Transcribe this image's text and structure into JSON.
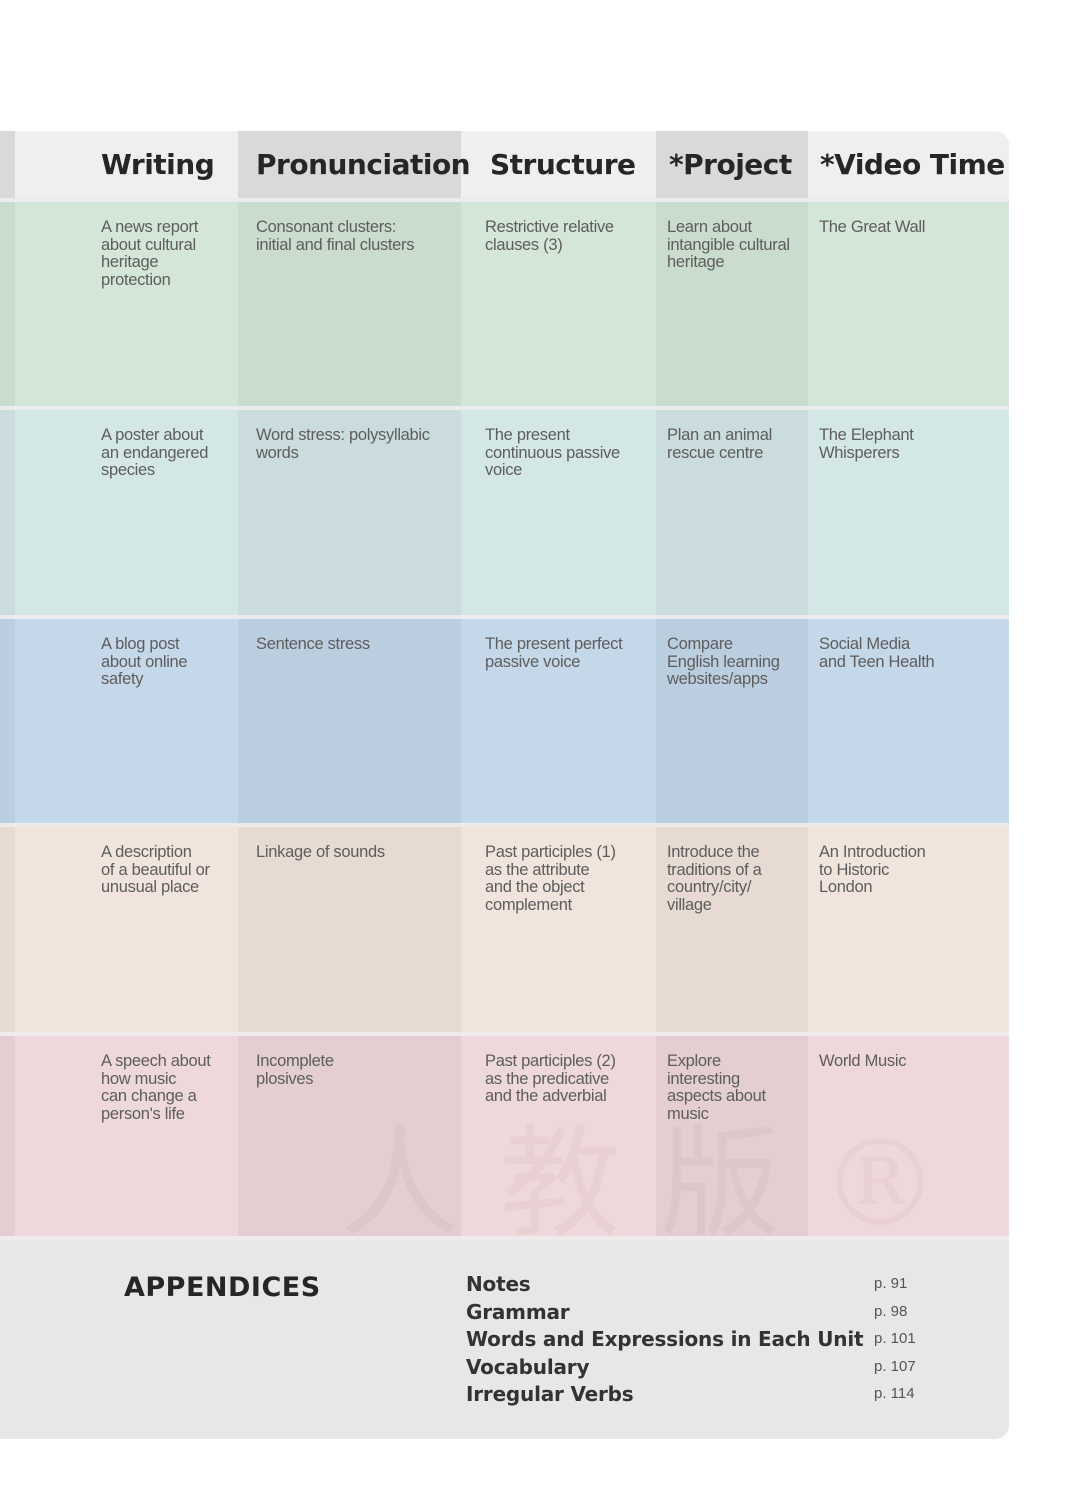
{
  "colors": {
    "row_1": "#d3e6d7",
    "row_1_alt": "#cadccd",
    "row_2": "#d4e7e7",
    "row_2_alt": "#cadcdd",
    "row_3": "#c4d8ea",
    "row_3_alt": "#bbcee0",
    "row_4": "#f0e4dc",
    "row_4_alt": "#e6dad2",
    "row_5": "#efd8db",
    "row_5_alt": "#e4ced1"
  },
  "columns": [
    "Writing",
    "Pronunciation",
    "Structure",
    "*Project",
    "*Video Time"
  ],
  "rows": [
    {
      "writing": [
        "A news report",
        "about cultural",
        "heritage",
        "protection"
      ],
      "pronunciation": [
        "Consonant clusters:",
        "initial and final clusters"
      ],
      "structure": [
        "Restrictive relative",
        "clauses (3)"
      ],
      "project": [
        "Learn about",
        "intangible cultural",
        "heritage"
      ],
      "video": [
        "The Great Wall"
      ]
    },
    {
      "writing": [
        "A poster about",
        "an endangered",
        "species"
      ],
      "pronunciation": [
        "Word stress: polysyllabic",
        "words"
      ],
      "structure": [
        "The present",
        "continuous passive",
        "voice"
      ],
      "project": [
        "Plan an animal",
        "rescue centre"
      ],
      "video": [
        "The Elephant",
        "Whisperers"
      ]
    },
    {
      "writing": [
        "A blog post",
        "about online",
        "safety"
      ],
      "pronunciation": [
        "Sentence stress"
      ],
      "structure": [
        "The present perfect",
        "passive voice"
      ],
      "project": [
        "Compare",
        "English learning",
        "websites/apps"
      ],
      "video": [
        "Social Media",
        "and Teen Health"
      ]
    },
    {
      "writing": [
        "A description",
        "of a beautiful or",
        "unusual place"
      ],
      "pronunciation": [
        "Linkage of sounds"
      ],
      "structure": [
        "Past participles (1)",
        "as the attribute",
        "and the object",
        "complement"
      ],
      "project": [
        "Introduce the",
        "traditions of a",
        "country/city/",
        "village"
      ],
      "video": [
        "An Introduction",
        "to Historic",
        "London"
      ]
    },
    {
      "writing": [
        "A speech about",
        "how music",
        "can change a",
        "person's life"
      ],
      "pronunciation": [
        "Incomplete",
        "plosives"
      ],
      "structure": [
        "Past participles (2)",
        "as the predicative",
        "and the adverbial"
      ],
      "project": [
        "Explore",
        "interesting",
        "aspects about",
        "music"
      ],
      "video": [
        "World Music"
      ]
    }
  ],
  "appendices": {
    "title": "APPENDICES",
    "items": [
      {
        "name": "Notes",
        "page": "p. 91"
      },
      {
        "name": "Grammar",
        "page": "p. 98"
      },
      {
        "name": "Words and Expressions in Each Unit",
        "page": "p. 101"
      },
      {
        "name": "Vocabulary",
        "page": "p. 107"
      },
      {
        "name": "Irregular Verbs",
        "page": "p. 114"
      }
    ]
  }
}
